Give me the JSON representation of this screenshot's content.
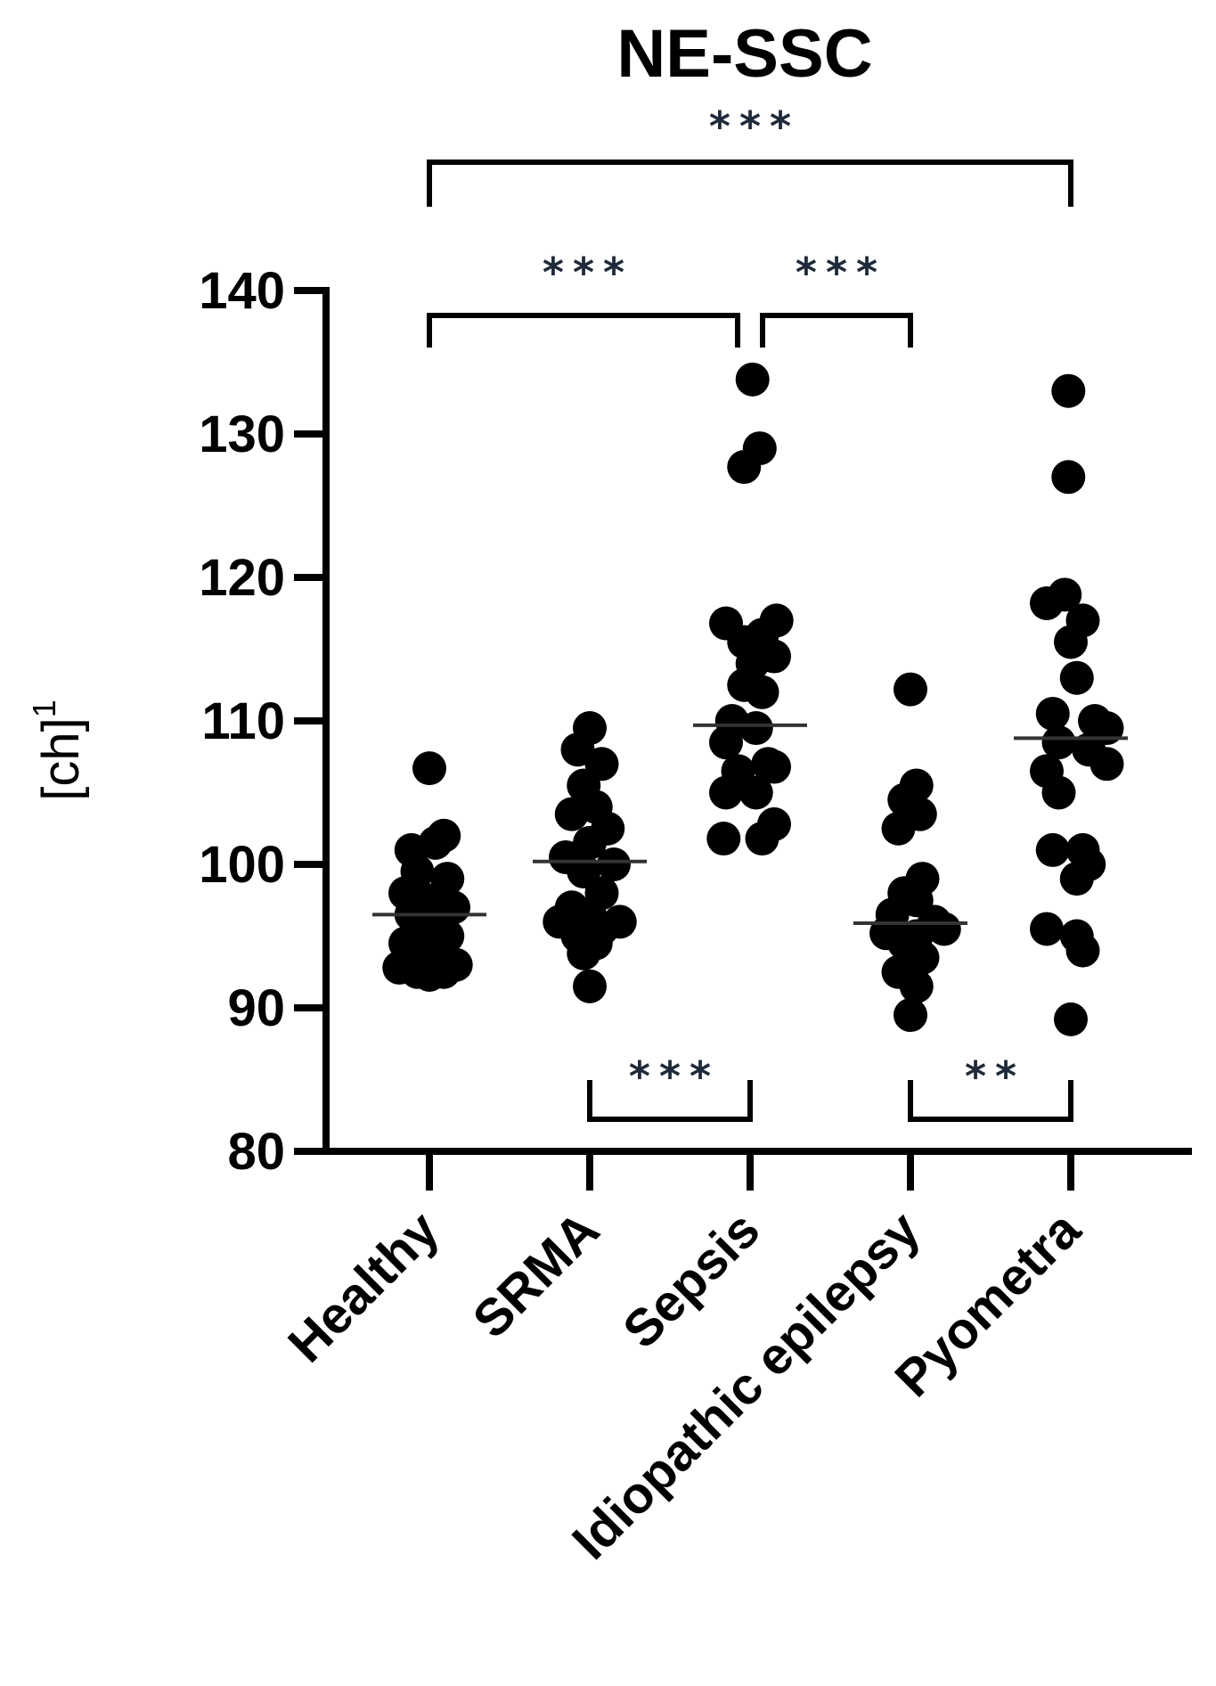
{
  "chart_data": {
    "type": "scatter",
    "title": "NE-SSC",
    "ylabel": "[ch]",
    "ylabel_superscript": "1",
    "ylim": [
      80,
      140
    ],
    "yticks": [
      80,
      90,
      100,
      110,
      120,
      130,
      140
    ],
    "categories": [
      "Healthy",
      "SRMA",
      "Sepsis",
      "Idiopathic epilepsy",
      "Pyometra"
    ],
    "means": [
      96.5,
      100.2,
      109.7,
      95.9,
      108.8
    ],
    "points": [
      [
        [
          0.0,
          106.7
        ],
        [
          -0.15,
          101.0
        ],
        [
          0.12,
          102.0
        ],
        [
          0.05,
          101.5
        ],
        [
          -0.1,
          99.5
        ],
        [
          0.15,
          99.0
        ],
        [
          -0.2,
          98.0
        ],
        [
          0.0,
          97.5
        ],
        [
          0.2,
          97.0
        ],
        [
          -0.15,
          96.5
        ],
        [
          0.1,
          96.0
        ],
        [
          -0.05,
          95.5
        ],
        [
          0.15,
          95.0
        ],
        [
          -0.2,
          94.5
        ],
        [
          0.05,
          94.0
        ],
        [
          -0.1,
          93.5
        ],
        [
          0.22,
          93.0
        ],
        [
          -0.25,
          92.8
        ],
        [
          0.12,
          92.5
        ],
        [
          0.0,
          92.3
        ],
        [
          -0.1,
          92.5
        ]
      ],
      [
        [
          0.0,
          109.5
        ],
        [
          -0.1,
          108.0
        ],
        [
          0.1,
          107.0
        ],
        [
          -0.05,
          105.5
        ],
        [
          0.05,
          104.0
        ],
        [
          -0.15,
          103.5
        ],
        [
          0.15,
          102.5
        ],
        [
          0.0,
          101.5
        ],
        [
          -0.2,
          100.5
        ],
        [
          0.2,
          100.0
        ],
        [
          -0.05,
          99.5
        ],
        [
          0.1,
          98.0
        ],
        [
          -0.15,
          97.0
        ],
        [
          0.0,
          96.5
        ],
        [
          -0.25,
          96.0
        ],
        [
          0.25,
          96.0
        ],
        [
          0.1,
          95.5
        ],
        [
          -0.1,
          95.0
        ],
        [
          0.05,
          94.5
        ],
        [
          -0.05,
          93.8
        ],
        [
          0.0,
          91.5
        ]
      ],
      [
        [
          0.02,
          133.8
        ],
        [
          -0.05,
          127.7
        ],
        [
          0.08,
          129.0
        ],
        [
          -0.2,
          116.8
        ],
        [
          0.22,
          117.0
        ],
        [
          0.1,
          116.0
        ],
        [
          -0.05,
          115.5
        ],
        [
          0.2,
          114.5
        ],
        [
          0.02,
          114.0
        ],
        [
          -0.05,
          112.5
        ],
        [
          0.1,
          112.0
        ],
        [
          -0.15,
          110.0
        ],
        [
          0.05,
          109.5
        ],
        [
          -0.2,
          108.5
        ],
        [
          0.15,
          107.0
        ],
        [
          -0.1,
          106.5
        ],
        [
          0.2,
          106.8
        ],
        [
          -0.2,
          105.0
        ],
        [
          0.05,
          105.0
        ],
        [
          0.2,
          102.8
        ],
        [
          -0.22,
          101.8
        ],
        [
          0.1,
          101.8
        ]
      ],
      [
        [
          0.0,
          112.2
        ],
        [
          0.05,
          105.5
        ],
        [
          -0.05,
          104.5
        ],
        [
          0.08,
          103.5
        ],
        [
          -0.1,
          102.5
        ],
        [
          0.1,
          99.0
        ],
        [
          -0.05,
          98.0
        ],
        [
          0.05,
          97.5
        ],
        [
          -0.15,
          96.5
        ],
        [
          0.2,
          96.0
        ],
        [
          0.28,
          95.5
        ],
        [
          -0.2,
          95.2
        ],
        [
          0.05,
          95.0
        ],
        [
          -0.05,
          94.5
        ],
        [
          0.1,
          93.5
        ],
        [
          -0.1,
          92.5
        ],
        [
          0.05,
          91.5
        ],
        [
          0.0,
          89.5
        ]
      ],
      [
        [
          -0.02,
          133.0
        ],
        [
          -0.02,
          127.0
        ],
        [
          -0.2,
          118.2
        ],
        [
          -0.05,
          118.8
        ],
        [
          0.1,
          117.0
        ],
        [
          0.0,
          115.5
        ],
        [
          0.05,
          113.0
        ],
        [
          -0.15,
          110.5
        ],
        [
          0.2,
          110.0
        ],
        [
          0.3,
          109.5
        ],
        [
          -0.1,
          108.5
        ],
        [
          0.15,
          108.0
        ],
        [
          0.3,
          107.0
        ],
        [
          -0.2,
          106.5
        ],
        [
          -0.1,
          105.0
        ],
        [
          0.1,
          101.0
        ],
        [
          -0.15,
          101.0
        ],
        [
          0.15,
          100.0
        ],
        [
          0.05,
          99.0
        ],
        [
          -0.2,
          95.5
        ],
        [
          0.05,
          95.0
        ],
        [
          0.1,
          94.0
        ],
        [
          0.0,
          89.2
        ]
      ]
    ],
    "significance": [
      {
        "from": 0,
        "to": 4,
        "label": "***"
      },
      {
        "from": 0,
        "to": 2,
        "label": "***"
      },
      {
        "from": 2,
        "to": 3,
        "label": "***"
      },
      {
        "from": 1,
        "to": 2,
        "label": "***"
      },
      {
        "from": 3,
        "to": 4,
        "label": "**"
      }
    ]
  }
}
